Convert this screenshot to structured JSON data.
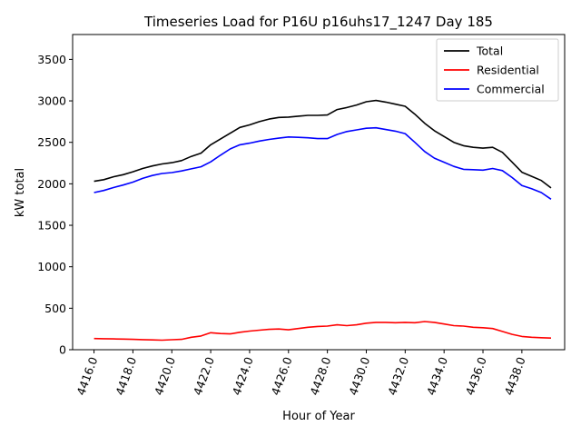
{
  "chart_data": {
    "type": "line",
    "title": "Timeseries Load for P16U p16uhs17_1247  Day 185",
    "xlabel": "Hour of Year",
    "ylabel": "kW total",
    "xlim": [
      4414.9,
      4440.2
    ],
    "ylim": [
      0,
      3800
    ],
    "xticks": [
      4416,
      4418,
      4420,
      4422,
      4424,
      4426,
      4428,
      4430,
      4432,
      4434,
      4436,
      4438
    ],
    "xtick_labels": [
      "4416.0",
      "4418.0",
      "4420.0",
      "4422.0",
      "4424.0",
      "4426.0",
      "4428.0",
      "4430.0",
      "4432.0",
      "4434.0",
      "4436.0",
      "4438.0"
    ],
    "yticks": [
      0,
      500,
      1000,
      1500,
      2000,
      2500,
      3000,
      3500
    ],
    "ytick_labels": [
      "0",
      "500",
      "1000",
      "1500",
      "2000",
      "2500",
      "3000",
      "3500"
    ],
    "legend_position": "top-right",
    "x": [
      4416,
      4416.5,
      4417,
      4417.5,
      4418,
      4418.5,
      4419,
      4419.5,
      4420,
      4420.5,
      4421,
      4421.5,
      4422,
      4422.5,
      4423,
      4423.5,
      4424,
      4424.5,
      4425,
      4425.5,
      4426,
      4426.5,
      4427,
      4427.5,
      4428,
      4428.5,
      4429,
      4429.5,
      4430,
      4430.5,
      4431,
      4431.5,
      4432,
      4432.5,
      4433,
      4433.5,
      4434,
      4434.5,
      4435,
      4435.5,
      4436,
      4436.5,
      4437,
      4437.5,
      4438,
      4438.5,
      4439,
      4439.5
    ],
    "series": [
      {
        "name": "Total",
        "color": "#000000",
        "values": [
          2030,
          2050,
          2085,
          2110,
          2145,
          2185,
          2215,
          2240,
          2255,
          2280,
          2330,
          2370,
          2470,
          2540,
          2610,
          2680,
          2710,
          2750,
          2780,
          2800,
          2805,
          2815,
          2825,
          2825,
          2830,
          2895,
          2920,
          2950,
          2990,
          3005,
          2985,
          2960,
          2935,
          2840,
          2730,
          2640,
          2570,
          2500,
          2460,
          2440,
          2430,
          2440,
          2380,
          2260,
          2140,
          2090,
          2040,
          1950
        ]
      },
      {
        "name": "Residential",
        "color": "#ff0000",
        "values": [
          135,
          132,
          130,
          128,
          125,
          122,
          118,
          115,
          120,
          125,
          150,
          165,
          205,
          195,
          190,
          210,
          225,
          235,
          245,
          250,
          240,
          255,
          270,
          280,
          285,
          300,
          290,
          300,
          320,
          330,
          330,
          325,
          330,
          325,
          340,
          330,
          310,
          290,
          285,
          270,
          265,
          255,
          220,
          185,
          160,
          150,
          145,
          140
        ]
      },
      {
        "name": "Commercial",
        "color": "#0000ff",
        "values": [
          1895,
          1920,
          1955,
          1985,
          2020,
          2065,
          2100,
          2125,
          2135,
          2155,
          2180,
          2205,
          2265,
          2345,
          2420,
          2470,
          2490,
          2515,
          2535,
          2550,
          2565,
          2560,
          2555,
          2545,
          2545,
          2595,
          2630,
          2650,
          2670,
          2675,
          2655,
          2635,
          2605,
          2500,
          2390,
          2310,
          2260,
          2210,
          2175,
          2170,
          2165,
          2185,
          2160,
          2075,
          1980,
          1940,
          1895,
          1815
        ]
      }
    ]
  }
}
